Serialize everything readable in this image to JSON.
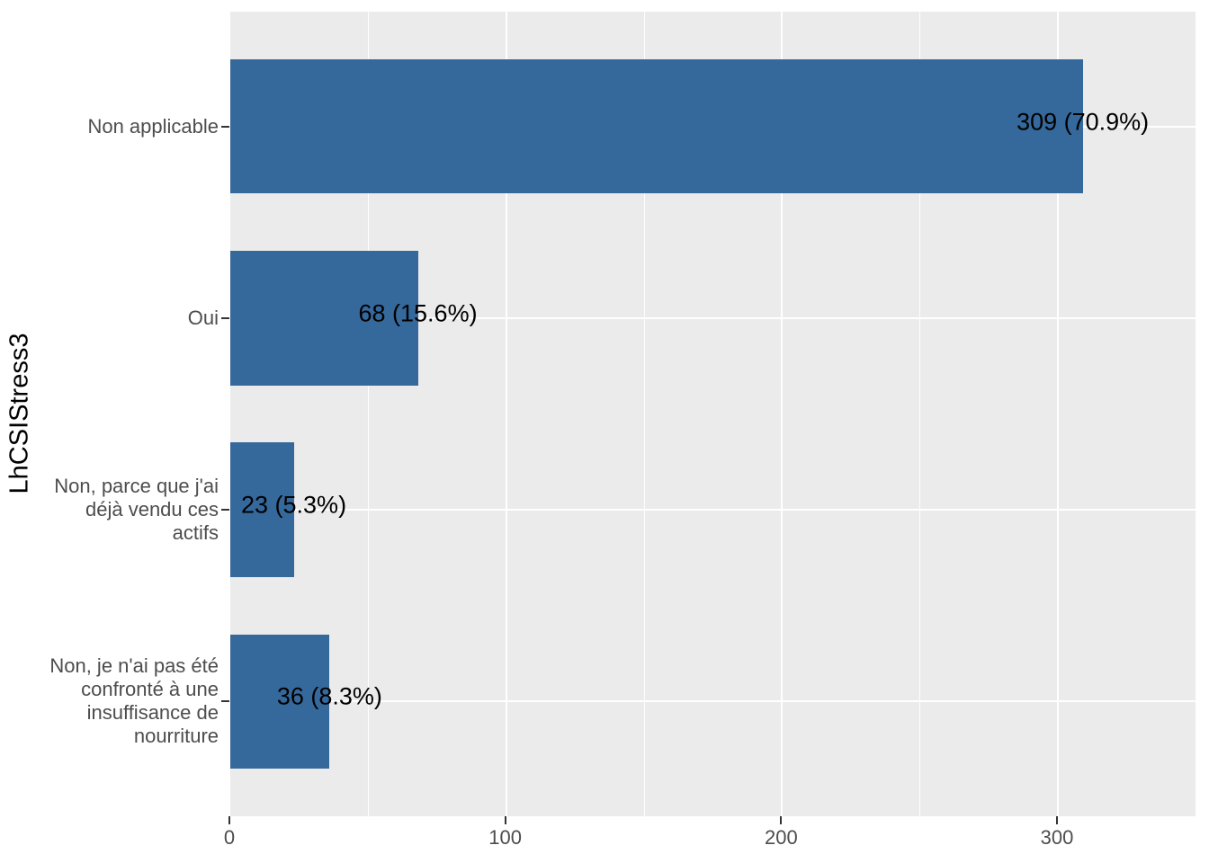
{
  "chart_data": {
    "type": "bar",
    "orientation": "horizontal",
    "title": "",
    "xlabel": "",
    "ylabel": "LhCSIStress3",
    "xlim": [
      0,
      350
    ],
    "x_ticks": [
      0,
      100,
      200,
      300
    ],
    "x_minor_gridlines": [
      50,
      150,
      250,
      350
    ],
    "grid": true,
    "legend": false,
    "bars": [
      {
        "category_lines": [
          "Non applicable"
        ],
        "value": 309,
        "pct": 70.9,
        "label": "309 (70.9%)"
      },
      {
        "category_lines": [
          "Oui"
        ],
        "value": 68,
        "pct": 15.6,
        "label": "68 (15.6%)"
      },
      {
        "category_lines": [
          "Non, parce que j'ai",
          "déjà vendu ces",
          "actifs"
        ],
        "value": 23,
        "pct": 5.3,
        "label": "23 (5.3%)"
      },
      {
        "category_lines": [
          "Non, je n'ai pas été",
          "confronté à une",
          "insuffisance de",
          "nourriture"
        ],
        "value": 36,
        "pct": 8.3,
        "label": "36 (8.3%)"
      }
    ],
    "colors": {
      "bar_fill": "#35689B",
      "panel_background": "#EBEBEB",
      "gridline": "#FFFFFF",
      "axis_text": "#4D4D4D",
      "tick_mark": "#333333",
      "bar_label_text": "#000000",
      "axis_title_text": "#000000"
    }
  }
}
